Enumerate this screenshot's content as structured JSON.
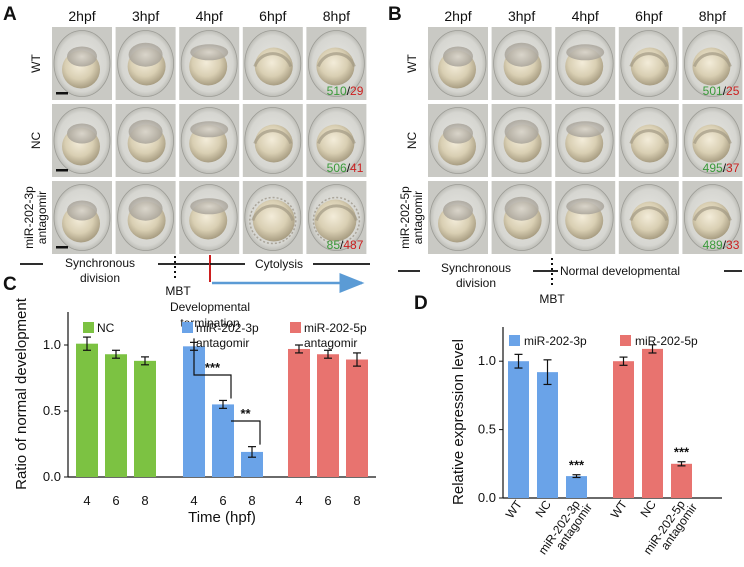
{
  "panels": {
    "A": {
      "label": "A",
      "timepoints": [
        "2hpf",
        "3hpf",
        "4hpf",
        "6hpf",
        "8hpf"
      ],
      "rows": [
        {
          "label": "WT",
          "normal": "510",
          "abnormal": "29"
        },
        {
          "label": "NC",
          "normal": "506",
          "abnormal": "41"
        },
        {
          "label_lines": [
            "miR-202-3p",
            "antagomir"
          ],
          "normal": "85",
          "abnormal": "487"
        }
      ],
      "timeline": {
        "left_lines": [
          "Synchronous",
          "division"
        ],
        "mbt": "MBT",
        "termination_lines": [
          "Developmental",
          "termination"
        ],
        "right": "Cytolysis"
      }
    },
    "B": {
      "label": "B",
      "timepoints": [
        "2hpf",
        "3hpf",
        "4hpf",
        "6hpf",
        "8hpf"
      ],
      "rows": [
        {
          "label": "WT",
          "normal": "501",
          "abnormal": "25"
        },
        {
          "label": "NC",
          "normal": "495",
          "abnormal": "37"
        },
        {
          "label_lines": [
            "miR-202-5p",
            "antagomir"
          ],
          "normal": "489",
          "abnormal": "33"
        }
      ],
      "timeline": {
        "left_lines": [
          "Synchronous",
          "division"
        ],
        "mbt": "MBT",
        "right": "Normal developmental"
      }
    }
  },
  "colors": {
    "normal_count": "#3a9a3a",
    "abnormal_count": "#cc1f1f",
    "green": "#7cc242",
    "blue": "#6aa3e8",
    "red": "#e8736f",
    "arrow": "#5b9bd5",
    "termination_line": "#cc1f1f"
  },
  "chart_data": [
    {
      "panel": "C",
      "type": "bar",
      "ylabel": "Ratio of normal development",
      "xlabel": "Time (hpf)",
      "ylim": [
        0,
        1.25
      ],
      "yticks": [
        "0.0",
        "0.5",
        "1.0"
      ],
      "categories": [
        "4",
        "6",
        "8"
      ],
      "series": [
        {
          "name": "NC",
          "values": [
            1.01,
            0.93,
            0.88
          ],
          "errors": [
            0.05,
            0.03,
            0.03
          ]
        },
        {
          "name_lines": [
            "miR-202-3p",
            "antagomir"
          ],
          "values": [
            0.99,
            0.55,
            0.19
          ],
          "errors": [
            0.03,
            0.03,
            0.04
          ]
        },
        {
          "name_lines": [
            "miR-202-5p",
            "antagomir"
          ],
          "values": [
            0.97,
            0.93,
            0.89
          ],
          "errors": [
            0.03,
            0.03,
            0.05
          ]
        }
      ],
      "annotations": [
        "***",
        "**"
      ]
    },
    {
      "panel": "D",
      "type": "bar",
      "ylabel": "Relative expression level",
      "ylim": [
        0,
        1.25
      ],
      "yticks": [
        "0.0",
        "0.5",
        "1.0"
      ],
      "groups": [
        {
          "name": "miR-202-3p",
          "categories": [
            [
              "WT"
            ],
            [
              "NC"
            ],
            [
              "miR-202-3p",
              "antagomir"
            ]
          ],
          "values": [
            1.0,
            0.92,
            0.16
          ],
          "errors": [
            0.05,
            0.09,
            0.01
          ]
        },
        {
          "name": "miR-202-5p",
          "categories": [
            [
              "WT"
            ],
            [
              "NC"
            ],
            [
              "miR-202-5p",
              "antagomir"
            ]
          ],
          "values": [
            1.0,
            1.09,
            0.25
          ],
          "errors": [
            0.03,
            0.03,
            0.015
          ]
        }
      ],
      "annotations": [
        "***",
        "***"
      ]
    }
  ],
  "panel_labels": {
    "C": "C",
    "D": "D"
  }
}
